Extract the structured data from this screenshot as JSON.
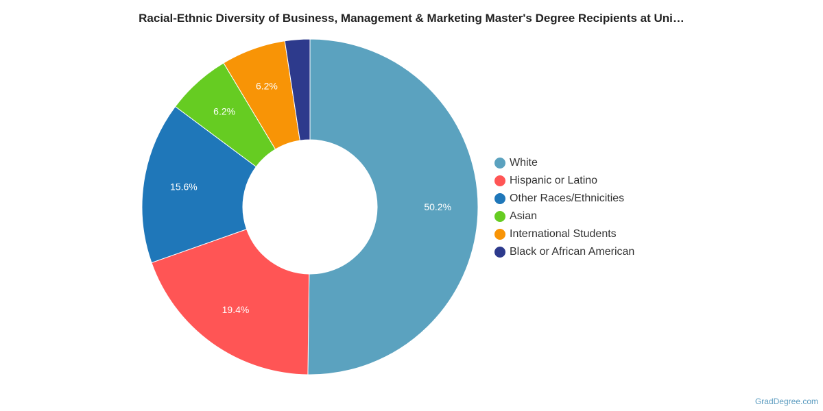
{
  "chart_data": {
    "type": "pie",
    "variant": "donut",
    "title": "Racial-Ethnic Diversity of Business, Management & Marketing Master's Degree Recipients at Uni…",
    "slices": [
      {
        "label": "White",
        "value": 50.2,
        "display": "50.2%",
        "color": "#5ba2bf"
      },
      {
        "label": "Hispanic or Latino",
        "value": 19.4,
        "display": "19.4%",
        "color": "#ff5555"
      },
      {
        "label": "Other Races/Ethnicities",
        "value": 15.6,
        "display": "15.6%",
        "color": "#1f77b9"
      },
      {
        "label": "Asian",
        "value": 6.2,
        "display": "6.2%",
        "color": "#66cc22"
      },
      {
        "label": "International Students",
        "value": 6.2,
        "display": "6.2%",
        "color": "#f89406"
      },
      {
        "label": "Black or African American",
        "value": 2.4,
        "display": "",
        "color": "#2d3a8c"
      }
    ],
    "legend_position": "right"
  },
  "credit": "GradDegree.com"
}
